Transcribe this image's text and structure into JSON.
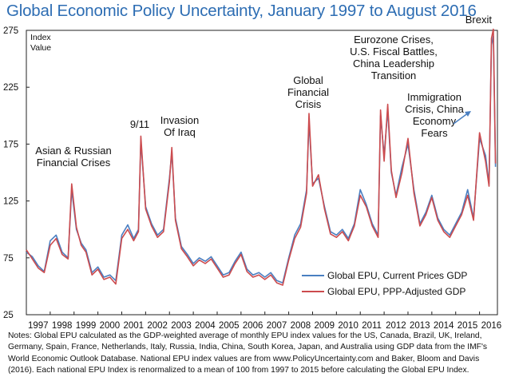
{
  "chart_data": {
    "type": "line",
    "title": "Global Economic Policy Uncertainty, January 1997 to August 2016",
    "ylabel": [
      "Index",
      "Value"
    ],
    "ylim": [
      25,
      275
    ],
    "yticks": [
      25,
      75,
      125,
      175,
      225,
      275
    ],
    "xlim": [
      1997,
      2016.75
    ],
    "xticks": [
      "1997",
      "1998",
      "1999",
      "2000",
      "2001",
      "2002",
      "2003",
      "2004",
      "2005",
      "2006",
      "2007",
      "2008",
      "2009",
      "2010",
      "2011",
      "2012",
      "2013",
      "2014",
      "2015",
      "2016"
    ],
    "grid": false,
    "legend_position": "bottom-right",
    "series": [
      {
        "name": "Global EPU, Current Prices GDP",
        "color": "#4a7fc1",
        "x": [
          1997.0,
          1997.25,
          1997.5,
          1997.75,
          1998.0,
          1998.25,
          1998.5,
          1998.75,
          1998.9,
          1999.1,
          1999.3,
          1999.5,
          1999.75,
          2000.0,
          2000.25,
          2000.5,
          2000.75,
          2001.0,
          2001.25,
          2001.5,
          2001.7,
          2001.8,
          2002.0,
          2002.25,
          2002.5,
          2002.75,
          2003.0,
          2003.1,
          2003.25,
          2003.5,
          2003.75,
          2004.0,
          2004.25,
          2004.5,
          2004.75,
          2005.0,
          2005.25,
          2005.5,
          2005.75,
          2006.0,
          2006.25,
          2006.5,
          2006.75,
          2007.0,
          2007.25,
          2007.5,
          2007.75,
          2008.0,
          2008.25,
          2008.5,
          2008.75,
          2008.85,
          2009.0,
          2009.25,
          2009.5,
          2009.75,
          2010.0,
          2010.25,
          2010.5,
          2010.75,
          2011.0,
          2011.25,
          2011.5,
          2011.75,
          2011.85,
          2012.0,
          2012.15,
          2012.3,
          2012.5,
          2012.75,
          2013.0,
          2013.25,
          2013.5,
          2013.75,
          2014.0,
          2014.25,
          2014.5,
          2014.75,
          2015.0,
          2015.25,
          2015.5,
          2015.75,
          2016.0,
          2016.25,
          2016.4,
          2016.5,
          2016.58,
          2016.67
        ],
        "values": [
          80,
          76,
          68,
          63,
          90,
          95,
          80,
          75,
          135,
          100,
          88,
          82,
          62,
          67,
          58,
          60,
          55,
          95,
          104,
          92,
          100,
          178,
          120,
          105,
          95,
          100,
          145,
          168,
          110,
          85,
          78,
          70,
          75,
          72,
          76,
          68,
          60,
          62,
          72,
          80,
          65,
          60,
          62,
          58,
          62,
          55,
          53,
          75,
          95,
          105,
          135,
          195,
          140,
          145,
          120,
          98,
          95,
          100,
          92,
          105,
          135,
          122,
          105,
          95,
          200,
          165,
          205,
          150,
          130,
          155,
          175,
          135,
          105,
          115,
          130,
          110,
          100,
          95,
          105,
          115,
          135,
          110,
          180,
          165,
          140,
          262,
          270,
          155
        ]
      },
      {
        "name": "Global EPU, PPP-Adjusted GDP",
        "color": "#cc4b4e",
        "x": [
          1997.0,
          1997.25,
          1997.5,
          1997.75,
          1998.0,
          1998.25,
          1998.5,
          1998.75,
          1998.9,
          1999.1,
          1999.3,
          1999.5,
          1999.75,
          2000.0,
          2000.25,
          2000.5,
          2000.75,
          2001.0,
          2001.25,
          2001.5,
          2001.7,
          2001.8,
          2002.0,
          2002.25,
          2002.5,
          2002.75,
          2003.0,
          2003.1,
          2003.25,
          2003.5,
          2003.75,
          2004.0,
          2004.25,
          2004.5,
          2004.75,
          2005.0,
          2005.25,
          2005.5,
          2005.75,
          2006.0,
          2006.25,
          2006.5,
          2006.75,
          2007.0,
          2007.25,
          2007.5,
          2007.75,
          2008.0,
          2008.25,
          2008.5,
          2008.75,
          2008.85,
          2009.0,
          2009.25,
          2009.5,
          2009.75,
          2010.0,
          2010.25,
          2010.5,
          2010.75,
          2011.0,
          2011.25,
          2011.5,
          2011.75,
          2011.85,
          2012.0,
          2012.15,
          2012.3,
          2012.5,
          2012.75,
          2013.0,
          2013.25,
          2013.5,
          2013.75,
          2014.0,
          2014.25,
          2014.5,
          2014.75,
          2015.0,
          2015.25,
          2015.5,
          2015.75,
          2016.0,
          2016.25,
          2016.4,
          2016.5,
          2016.58,
          2016.67
        ],
        "values": [
          82,
          74,
          66,
          62,
          86,
          92,
          78,
          74,
          140,
          102,
          86,
          80,
          60,
          65,
          56,
          58,
          52,
          92,
          100,
          90,
          98,
          182,
          118,
          103,
          93,
          98,
          142,
          172,
          108,
          83,
          76,
          68,
          73,
          70,
          74,
          66,
          58,
          60,
          70,
          78,
          63,
          58,
          60,
          56,
          60,
          53,
          51,
          73,
          92,
          102,
          132,
          202,
          138,
          148,
          118,
          96,
          93,
          98,
          90,
          103,
          130,
          120,
          103,
          93,
          205,
          160,
          210,
          152,
          128,
          150,
          180,
          132,
          103,
          113,
          128,
          108,
          98,
          93,
          103,
          113,
          130,
          108,
          185,
          160,
          138,
          268,
          276,
          158
        ]
      }
    ],
    "annotations": [
      {
        "lines": [
          "Asian & Russian",
          "Financial Crises"
        ]
      },
      {
        "lines": [
          "9/11"
        ]
      },
      {
        "lines": [
          "Invasion",
          "Of Iraq"
        ]
      },
      {
        "lines": [
          "Global",
          "Financial",
          "Crisis"
        ]
      },
      {
        "lines": [
          "Eurozone Crises,",
          "U.S. Fiscal Battles,",
          "China Leadership",
          "Transition"
        ]
      },
      {
        "lines": [
          "Immigration",
          "Crisis, China",
          "Economy",
          "Fears"
        ]
      },
      {
        "lines": [
          "Brexit"
        ]
      }
    ]
  },
  "notes": "Notes: Global EPU calculated as the GDP-weighted average of monthly EPU index values for the US, Canada, Brazil, UK, Ireland, Germany, Spain, France, Netherlands, Italy, Russia, India, China, South Korea, Japan, and Australia using GDP data from the IMF's World Economic Outlook Database. National EPU index values are from www.PolicyUncertainty.com and Baker, Bloom and Davis (2016). Each national EPU Index is renormalized to a mean of 100 from 1997 to 2015 before calculating the Global EPU Index."
}
